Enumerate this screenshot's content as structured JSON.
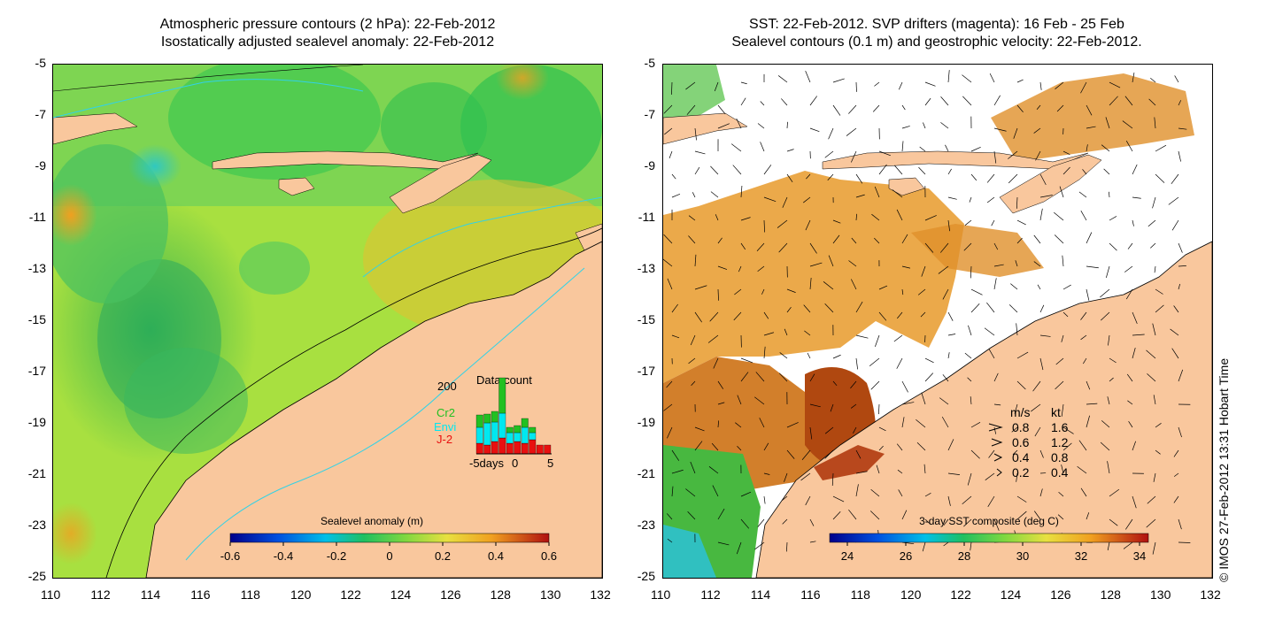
{
  "left_map": {
    "title_line1": "Atmospheric pressure contours (2 hPa): 22-Feb-2012",
    "title_line2": "Isostatically adjusted sealevel anomaly: 22-Feb-2012",
    "colorbar_title": "Sealevel anomaly (m)",
    "colorbar_ticks": [
      "-0.6",
      "-0.4",
      "-0.2",
      "0",
      "0.2",
      "0.4",
      "0.6"
    ],
    "data_count": {
      "title": "Data count",
      "max_label": "200",
      "series_labels": [
        "Cr2",
        "Envi",
        "J-2"
      ],
      "series_colors": [
        "#22c022",
        "#00e8f0",
        "#e81010"
      ],
      "x_labels": [
        "-5days",
        "0",
        "5"
      ]
    }
  },
  "right_map": {
    "title_line1": "SST: 22-Feb-2012. SVP drifters (magenta): 16 Feb - 25 Feb",
    "title_line2": "Sealevel contours (0.1 m) and geostrophic velocity: 22-Feb-2012.",
    "colorbar_title": "3-day SST composite (deg C)",
    "colorbar_ticks": [
      "24",
      "26",
      "28",
      "30",
      "32",
      "34"
    ],
    "velocity_legend": {
      "header_ms": "m/s",
      "header_kt": "kt",
      "rows": [
        {
          "ms": "0.8",
          "kt": "1.6"
        },
        {
          "ms": "0.6",
          "kt": "1.2"
        },
        {
          "ms": "0.4",
          "kt": "0.8"
        },
        {
          "ms": "0.2",
          "kt": "0.4"
        }
      ]
    }
  },
  "axes": {
    "lat_labels": [
      "-5",
      "-7",
      "-9",
      "-11",
      "-13",
      "-15",
      "-17",
      "-19",
      "-21",
      "-23",
      "-25"
    ],
    "lon_labels": [
      "110",
      "112",
      "114",
      "116",
      "118",
      "120",
      "122",
      "124",
      "126",
      "128",
      "130",
      "132"
    ]
  },
  "stamp": "© IMOS 27-Feb-2012 13:31 Hobart Time",
  "colors": {
    "land": "#f9c79d",
    "ocean_green": "#7bd84a",
    "ocean_yellow": "#c8e83a",
    "ocean_orange": "#e8a22a",
    "sst_orange": "#d9881e",
    "sst_dark": "#b44a10",
    "contour_cyan": "#32d2e6"
  }
}
